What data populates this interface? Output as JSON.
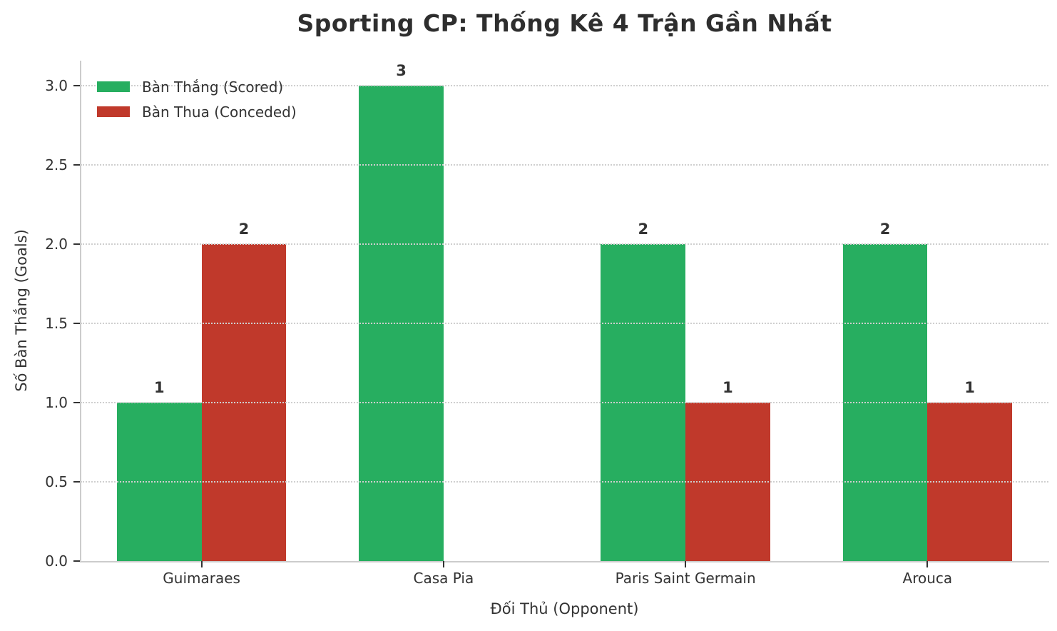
{
  "chart_data": {
    "type": "bar",
    "title": "Sporting CP: Thống Kê 4 Trận Gần Nhất",
    "xlabel": "Đối Thủ (Opponent)",
    "ylabel": "Số Bàn Thắng (Goals)",
    "categories": [
      "Guimaraes",
      "Casa Pia",
      "Paris Saint Germain",
      "Arouca"
    ],
    "series": [
      {
        "name": "Bàn Thắng (Scored)",
        "color": "#27ae60",
        "values": [
          1,
          3,
          2,
          2
        ]
      },
      {
        "name": "Bàn Thua (Conceded)",
        "color": "#c0392b",
        "values": [
          2,
          0,
          1,
          1
        ]
      }
    ],
    "yticks": [
      0.0,
      0.5,
      1.0,
      1.5,
      2.0,
      2.5,
      3.0
    ],
    "ytick_labels": [
      "0.0",
      "0.5",
      "1.0",
      "1.5",
      "2.0",
      "2.5",
      "3.0"
    ],
    "ylim": [
      0,
      3.157
    ],
    "bar_width_fraction": 0.35,
    "grid": "horizontal-dotted-over-bars",
    "legend_position": "upper-left",
    "hide_zero_value_bars_and_labels": true,
    "colors": {
      "title_text": "#2e2e2e",
      "axis_text": "#333333",
      "tick_mark": "#333333",
      "spine": "#cccccc",
      "gridline": "#cfcfcf",
      "value_label": "#333333",
      "background": "#ffffff"
    }
  }
}
